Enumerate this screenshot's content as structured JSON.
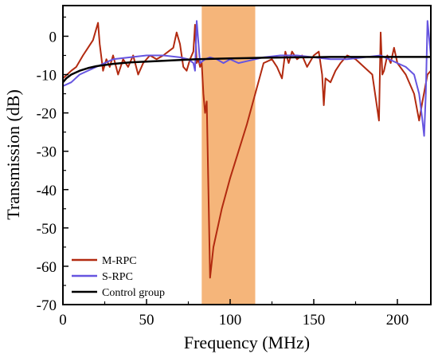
{
  "chart_data": {
    "type": "line",
    "title": "",
    "xlabel": "Frequency (MHz)",
    "ylabel": "Transmission (dB)",
    "xlim": [
      0,
      220
    ],
    "ylim": [
      -70,
      8
    ],
    "xticks": [
      0,
      50,
      100,
      150,
      200
    ],
    "yticks": [
      -70,
      -60,
      -50,
      -40,
      -30,
      -20,
      -10,
      0
    ],
    "grid": false,
    "legend_position": "bottom-left",
    "band": {
      "x_start": 83,
      "x_end": 115,
      "color": "#f5b57a"
    },
    "series": [
      {
        "name": "M-RPC",
        "color": "#b22a10",
        "x": [
          0,
          5,
          8,
          12,
          15,
          18,
          20,
          21,
          22,
          24,
          26,
          28,
          30,
          33,
          36,
          39,
          42,
          45,
          48,
          52,
          56,
          60,
          63,
          66,
          68,
          70,
          72,
          74,
          76,
          78,
          79,
          80,
          81,
          82,
          83,
          84,
          85,
          86,
          87,
          88,
          90,
          95,
          100,
          105,
          110,
          115,
          120,
          125,
          128,
          131,
          133,
          135,
          137,
          140,
          143,
          146,
          150,
          153,
          155,
          156,
          157,
          160,
          163,
          166,
          170,
          175,
          180,
          185,
          189,
          190,
          191,
          192,
          194,
          196,
          198,
          200,
          205,
          210,
          213,
          215,
          218,
          220
        ],
        "values": [
          -11,
          -9,
          -8,
          -5,
          -3,
          -1,
          2,
          3.5,
          -2,
          -9,
          -6,
          -8,
          -5,
          -10,
          -6,
          -8,
          -5,
          -10,
          -7,
          -5,
          -6,
          -5,
          -4,
          -3,
          1,
          -2,
          -8,
          -9,
          -6,
          -4,
          3,
          -7,
          -6,
          -8,
          -7,
          -15,
          -20,
          -17,
          -40,
          -63,
          -55,
          -45,
          -37,
          -30,
          -23,
          -15,
          -7,
          -6,
          -8,
          -11,
          -4,
          -7,
          -4,
          -6,
          -5,
          -8,
          -5,
          -4,
          -10,
          -18,
          -11,
          -12,
          -9,
          -7,
          -5,
          -6,
          -8,
          -10,
          -22,
          1,
          -10,
          -9,
          -5,
          -7,
          -3,
          -7,
          -10,
          -15,
          -22,
          -17,
          -10,
          -9
        ]
      },
      {
        "name": "S-RPC",
        "color": "#6655e0",
        "x": [
          0,
          5,
          10,
          20,
          30,
          40,
          50,
          60,
          70,
          75,
          78,
          79,
          80,
          82,
          85,
          88,
          92,
          96,
          100,
          105,
          110,
          120,
          130,
          140,
          150,
          160,
          170,
          180,
          190,
          195,
          200,
          205,
          210,
          213,
          215,
          216,
          217,
          218,
          220
        ],
        "values": [
          -13,
          -12,
          -10,
          -8,
          -6,
          -5.5,
          -5,
          -5,
          -5.5,
          -6,
          -7,
          -9,
          4,
          -7,
          -6,
          -5.5,
          -6,
          -7,
          -6,
          -7,
          -6.5,
          -5.5,
          -5,
          -5,
          -5.5,
          -6,
          -6,
          -5.5,
          -5,
          -6,
          -7,
          -8,
          -10,
          -15,
          -22,
          -26,
          -15,
          4,
          -5
        ]
      },
      {
        "name": "Control group",
        "color": "#000000",
        "x": [
          0,
          2,
          5,
          10,
          15,
          20,
          30,
          40,
          50,
          60,
          70,
          80,
          90,
          100,
          110,
          120,
          130,
          140,
          150,
          160,
          170,
          180,
          190,
          200,
          210,
          220
        ],
        "values": [
          -12,
          -11,
          -10,
          -9,
          -8.3,
          -7.8,
          -7.2,
          -6.8,
          -6.6,
          -6.4,
          -6.2,
          -6,
          -5.9,
          -5.8,
          -5.7,
          -5.6,
          -5.55,
          -5.5,
          -5.45,
          -5.4,
          -5.4,
          -5.4,
          -5.4,
          -5.4,
          -5.4,
          -5.4
        ]
      }
    ]
  }
}
